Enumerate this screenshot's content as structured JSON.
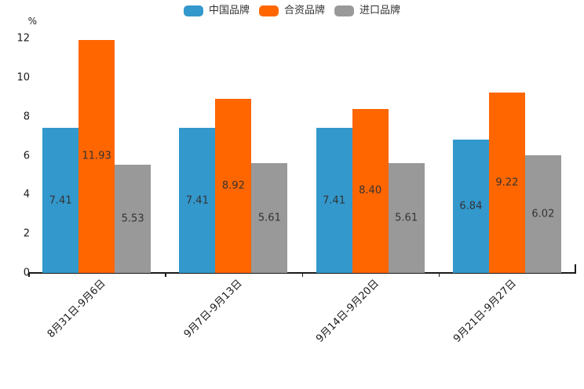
{
  "chart_data": {
    "type": "bar",
    "title": "",
    "unit_label": "%",
    "categories": [
      "8月31日-9月6日",
      "9月7日-9月13日",
      "9月14日-9月20日",
      "9月21日-9月27日"
    ],
    "series": [
      {
        "name": "中国品牌",
        "color": "#3398cc",
        "values": [
          7.41,
          7.41,
          7.41,
          6.84
        ],
        "labels": [
          "7.41",
          "7.41",
          "7.41",
          "6.84"
        ]
      },
      {
        "name": "合资品牌",
        "color": "#ff6600",
        "values": [
          11.93,
          8.92,
          8.4,
          9.22
        ],
        "labels": [
          "11.93",
          "8.92",
          "8.40",
          "9.22"
        ]
      },
      {
        "name": "进口品牌",
        "color": "#999999",
        "values": [
          5.53,
          5.61,
          5.61,
          6.02
        ],
        "labels": [
          "5.53",
          "5.61",
          "5.61",
          "6.02"
        ]
      }
    ],
    "y_ticks": [
      0,
      2,
      4,
      6,
      8,
      10,
      12
    ],
    "ylim": [
      0,
      12
    ],
    "legend_position": "top",
    "grid": false,
    "value_label_position": "inside-center",
    "bar_label_color": "#333333",
    "axis_color": "#1a1a1a"
  }
}
